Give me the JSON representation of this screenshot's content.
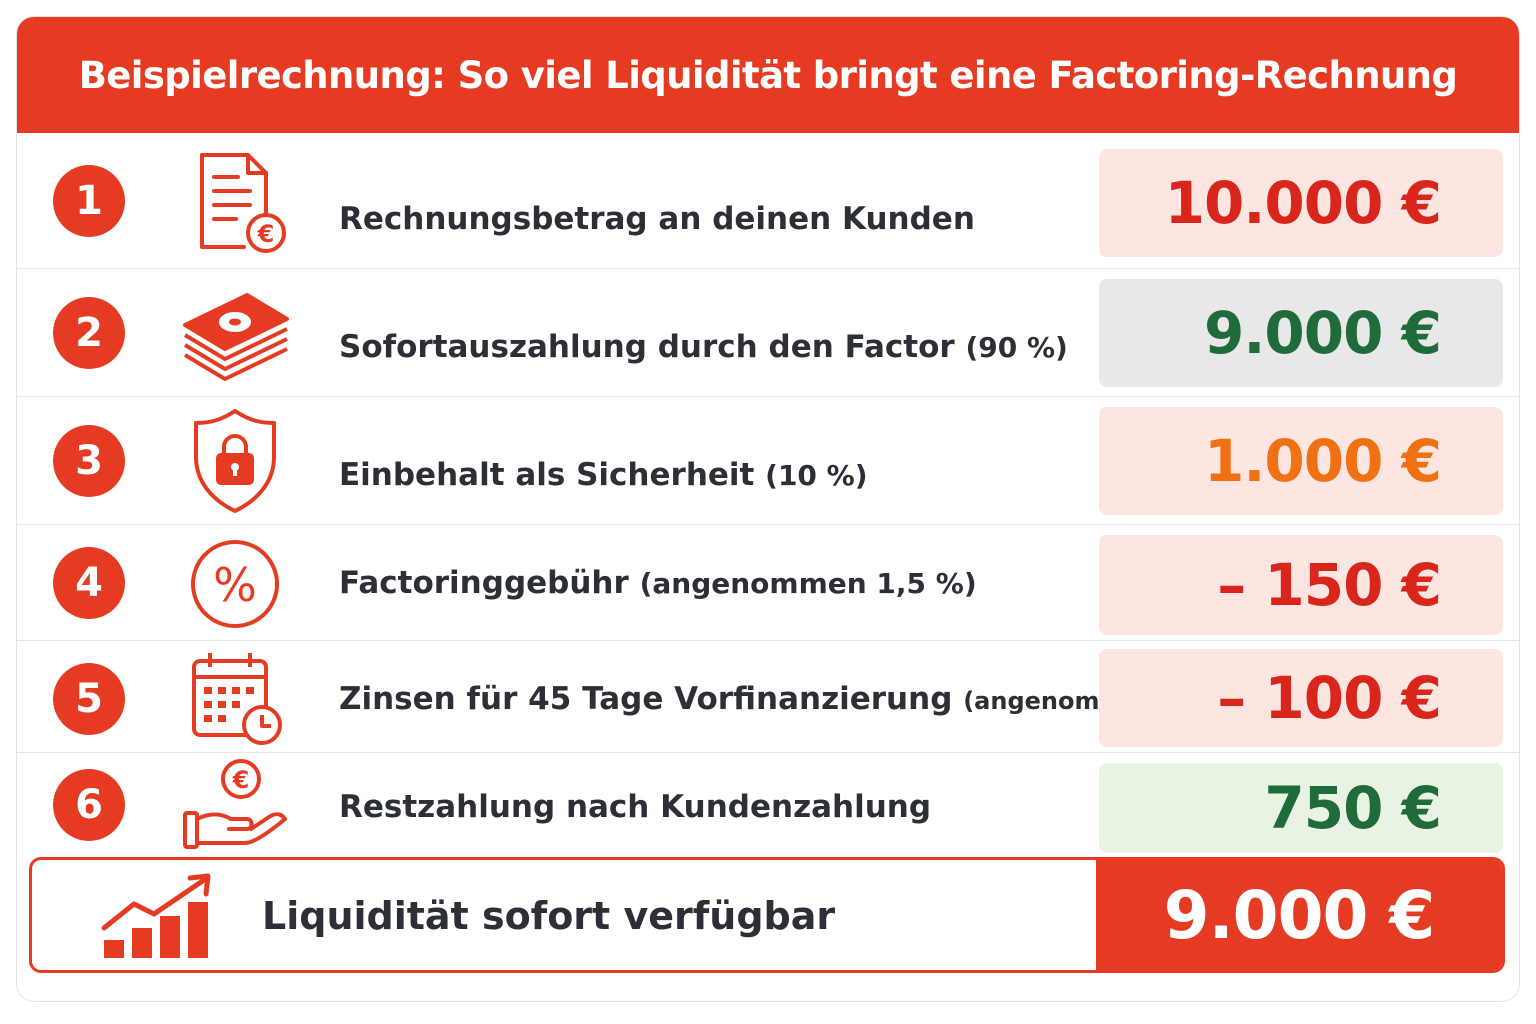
{
  "title": "Beispielrechnung: So viel Liquidität bringt eine Factoring-Rechnung",
  "colors": {
    "accent": "#e63b23",
    "negative": "#d9261c",
    "positive": "#1f6b3a",
    "orange": "#f07014",
    "rowBgPink": "#fde5e1",
    "rowBgGrey": "#e8e8e8",
    "rowBgGreen": "#e9f3e3"
  },
  "rows": [
    {
      "number": "1",
      "icon": "invoice-euro-icon",
      "label": "Rechnungsbetrag an deinen Kunden",
      "label_note": "",
      "value": "10.000 €"
    },
    {
      "number": "2",
      "icon": "money-stack-icon",
      "label": "Sofortauszahlung durch den Factor",
      "label_note": "(90 %)",
      "value": "9.000 €"
    },
    {
      "number": "3",
      "icon": "shield-lock-icon",
      "label": "Einbehalt als Sicherheit",
      "label_note": "(10 %)",
      "value": "1.000 €"
    },
    {
      "number": "4",
      "icon": "percent-icon",
      "label": "Factoringgebühr",
      "label_note": "(angenommen 1,5 %)",
      "value": "– 150 €"
    },
    {
      "number": "5",
      "icon": "calendar-clock-icon",
      "label": "Zinsen für 45 Tage Vorfinanzierung",
      "label_note": "(angenommen)",
      "value": "– 100 €"
    },
    {
      "number": "6",
      "icon": "hand-euro-coin-icon",
      "label": "Restzahlung nach Kundenzahlung",
      "label_note": "",
      "value": "750 €"
    }
  ],
  "total": {
    "icon": "growth-chart-icon",
    "label": "Liquidität sofort verfügbar",
    "value": "9.000 €"
  }
}
